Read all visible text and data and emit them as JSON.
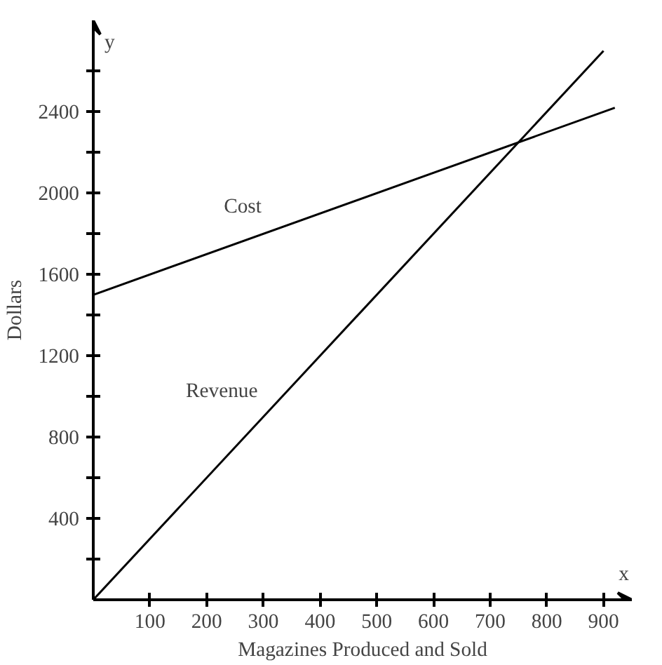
{
  "chart_data": {
    "type": "line",
    "xlabel": "Magazines Produced and Sold",
    "ylabel": "Dollars",
    "xlim": [
      0,
      950
    ],
    "ylim": [
      0,
      2850
    ],
    "xticks": [
      100,
      200,
      300,
      400,
      500,
      600,
      700,
      800,
      900
    ],
    "yticks": [
      {
        "value": 200,
        "label": null
      },
      400,
      {
        "value": 600,
        "label": null
      },
      800,
      {
        "value": 1000,
        "label": null
      },
      1200,
      {
        "value": 1400,
        "label": null
      },
      1600,
      {
        "value": 1800,
        "label": null
      },
      2000,
      {
        "value": 2200,
        "label": null
      },
      2400,
      {
        "value": 2600,
        "label": null
      }
    ],
    "series": [
      {
        "name": "Cost",
        "color": "#000000",
        "x": [
          0,
          920
        ],
        "values": [
          1500,
          2420
        ]
      },
      {
        "name": "Revenue",
        "color": "#000000",
        "x": [
          0,
          900
        ],
        "values": [
          0,
          2700
        ]
      }
    ],
    "annotations": [
      "x",
      "y"
    ],
    "grid": false,
    "legend": false,
    "marker": "none",
    "line_style": "solid"
  }
}
